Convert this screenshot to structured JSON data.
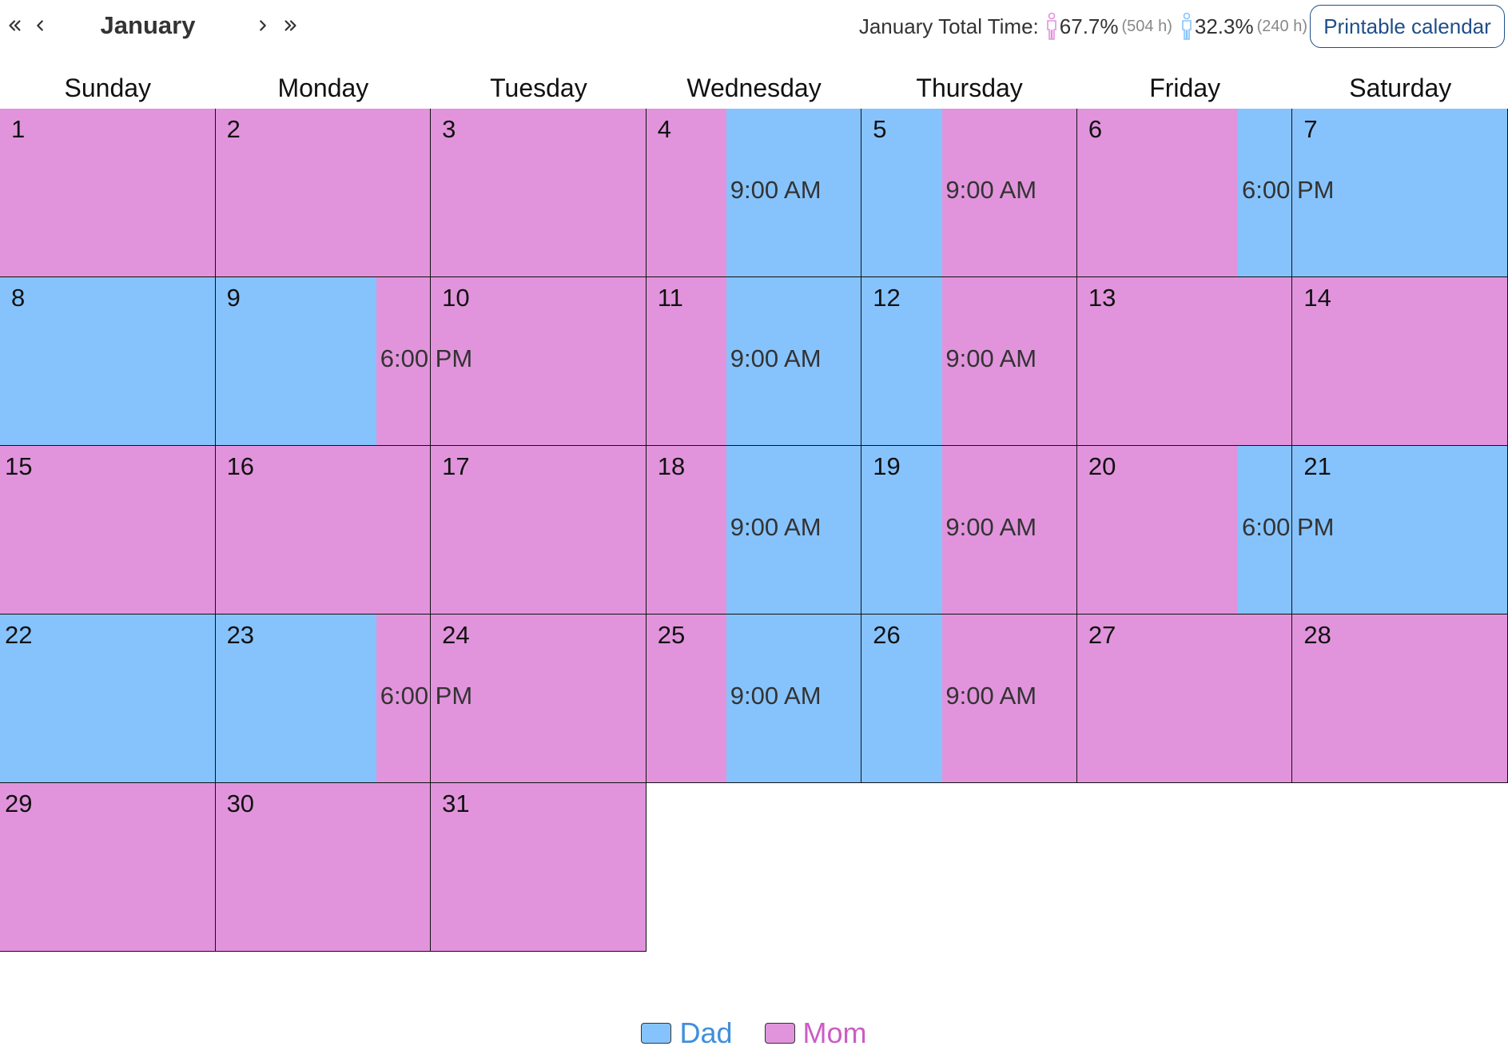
{
  "header": {
    "month": "January",
    "total_label": "January Total Time:",
    "mom_percent": "67.7%",
    "mom_hours": "(504 h)",
    "dad_percent": "32.3%",
    "dad_hours": "(240 h)",
    "printable_label": "Printable calendar"
  },
  "weekdays": [
    "Sunday",
    "Monday",
    "Tuesday",
    "Wednesday",
    "Thursday",
    "Friday",
    "Saturday"
  ],
  "colors": {
    "dad": "#86c3fd",
    "mom": "#e194dc",
    "dad_text": "#3f8fdc",
    "mom_text": "#cc5cc5"
  },
  "legend": [
    {
      "key": "dad",
      "label": "Dad"
    },
    {
      "key": "mom",
      "label": "Mom"
    }
  ],
  "calendar": {
    "first_weekday": 0,
    "days_in_month": 31,
    "days": [
      {
        "day": 1,
        "start": "mom"
      },
      {
        "day": 2,
        "start": "mom"
      },
      {
        "day": 3,
        "start": "mom"
      },
      {
        "day": 4,
        "start": "mom",
        "switch_to": "dad",
        "switch_fraction": 0.375,
        "switch_label": "9:00 AM"
      },
      {
        "day": 5,
        "start": "dad",
        "switch_to": "mom",
        "switch_fraction": 0.375,
        "switch_label": "9:00 AM"
      },
      {
        "day": 6,
        "start": "mom",
        "switch_to": "dad",
        "switch_fraction": 0.75,
        "switch_label": "6:00 PM"
      },
      {
        "day": 7,
        "start": "dad"
      },
      {
        "day": 8,
        "start": "dad"
      },
      {
        "day": 9,
        "start": "dad",
        "switch_to": "mom",
        "switch_fraction": 0.75,
        "switch_label": "6:00 PM"
      },
      {
        "day": 10,
        "start": "mom"
      },
      {
        "day": 11,
        "start": "mom",
        "switch_to": "dad",
        "switch_fraction": 0.375,
        "switch_label": "9:00 AM"
      },
      {
        "day": 12,
        "start": "dad",
        "switch_to": "mom",
        "switch_fraction": 0.375,
        "switch_label": "9:00 AM"
      },
      {
        "day": 13,
        "start": "mom"
      },
      {
        "day": 14,
        "start": "mom"
      },
      {
        "day": 15,
        "start": "mom"
      },
      {
        "day": 16,
        "start": "mom"
      },
      {
        "day": 17,
        "start": "mom"
      },
      {
        "day": 18,
        "start": "mom",
        "switch_to": "dad",
        "switch_fraction": 0.375,
        "switch_label": "9:00 AM"
      },
      {
        "day": 19,
        "start": "dad",
        "switch_to": "mom",
        "switch_fraction": 0.375,
        "switch_label": "9:00 AM"
      },
      {
        "day": 20,
        "start": "mom",
        "switch_to": "dad",
        "switch_fraction": 0.75,
        "switch_label": "6:00 PM"
      },
      {
        "day": 21,
        "start": "dad"
      },
      {
        "day": 22,
        "start": "dad"
      },
      {
        "day": 23,
        "start": "dad",
        "switch_to": "mom",
        "switch_fraction": 0.75,
        "switch_label": "6:00 PM"
      },
      {
        "day": 24,
        "start": "mom"
      },
      {
        "day": 25,
        "start": "mom",
        "switch_to": "dad",
        "switch_fraction": 0.375,
        "switch_label": "9:00 AM"
      },
      {
        "day": 26,
        "start": "dad",
        "switch_to": "mom",
        "switch_fraction": 0.375,
        "switch_label": "9:00 AM"
      },
      {
        "day": 27,
        "start": "mom"
      },
      {
        "day": 28,
        "start": "mom"
      },
      {
        "day": 29,
        "start": "mom"
      },
      {
        "day": 30,
        "start": "mom"
      },
      {
        "day": 31,
        "start": "mom"
      }
    ]
  }
}
